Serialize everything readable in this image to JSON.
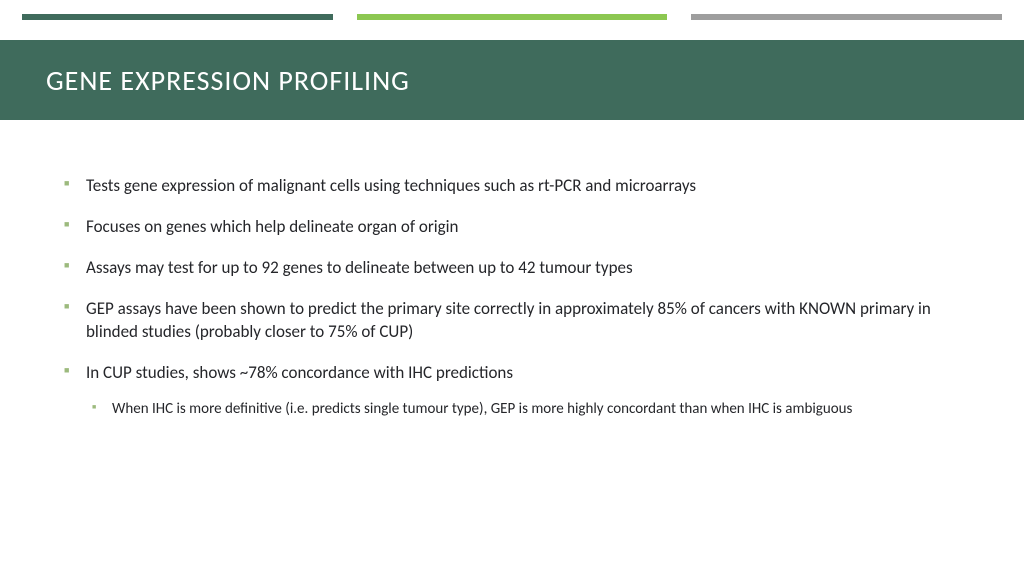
{
  "colors": {
    "bar1": "#3f6b5c",
    "bar2": "#8cc751",
    "bar3": "#9e9e9e",
    "title_band": "#3f6b5c",
    "title_text": "#ffffff",
    "bullet_l1": "#9cba7d",
    "bullet_l2": "#9cba7d",
    "body_text": "#25262a",
    "background": "#ffffff"
  },
  "title": "GENE EXPRESSION PROFILING",
  "title_fontsize": 28,
  "body_fontsize_l1": 17,
  "body_fontsize_l2": 15,
  "bullets": [
    {
      "text": "Tests gene expression of malignant cells using techniques such as rt-PCR and microarrays"
    },
    {
      "text": "Focuses on genes which help delineate organ of origin"
    },
    {
      "text": "Assays may test for up to 92 genes to delineate between up to 42 tumour types"
    },
    {
      "text": "GEP assays have been shown to predict the primary site correctly in approximately 85% of cancers with KNOWN primary in blinded studies (probably closer to 75% of CUP)"
    },
    {
      "text": "In CUP studies, shows ~78% concordance with IHC predictions",
      "children": [
        {
          "text": "When IHC is more definitive (i.e. predicts single tumour type), GEP is more highly concordant than when IHC is ambiguous"
        }
      ]
    }
  ]
}
